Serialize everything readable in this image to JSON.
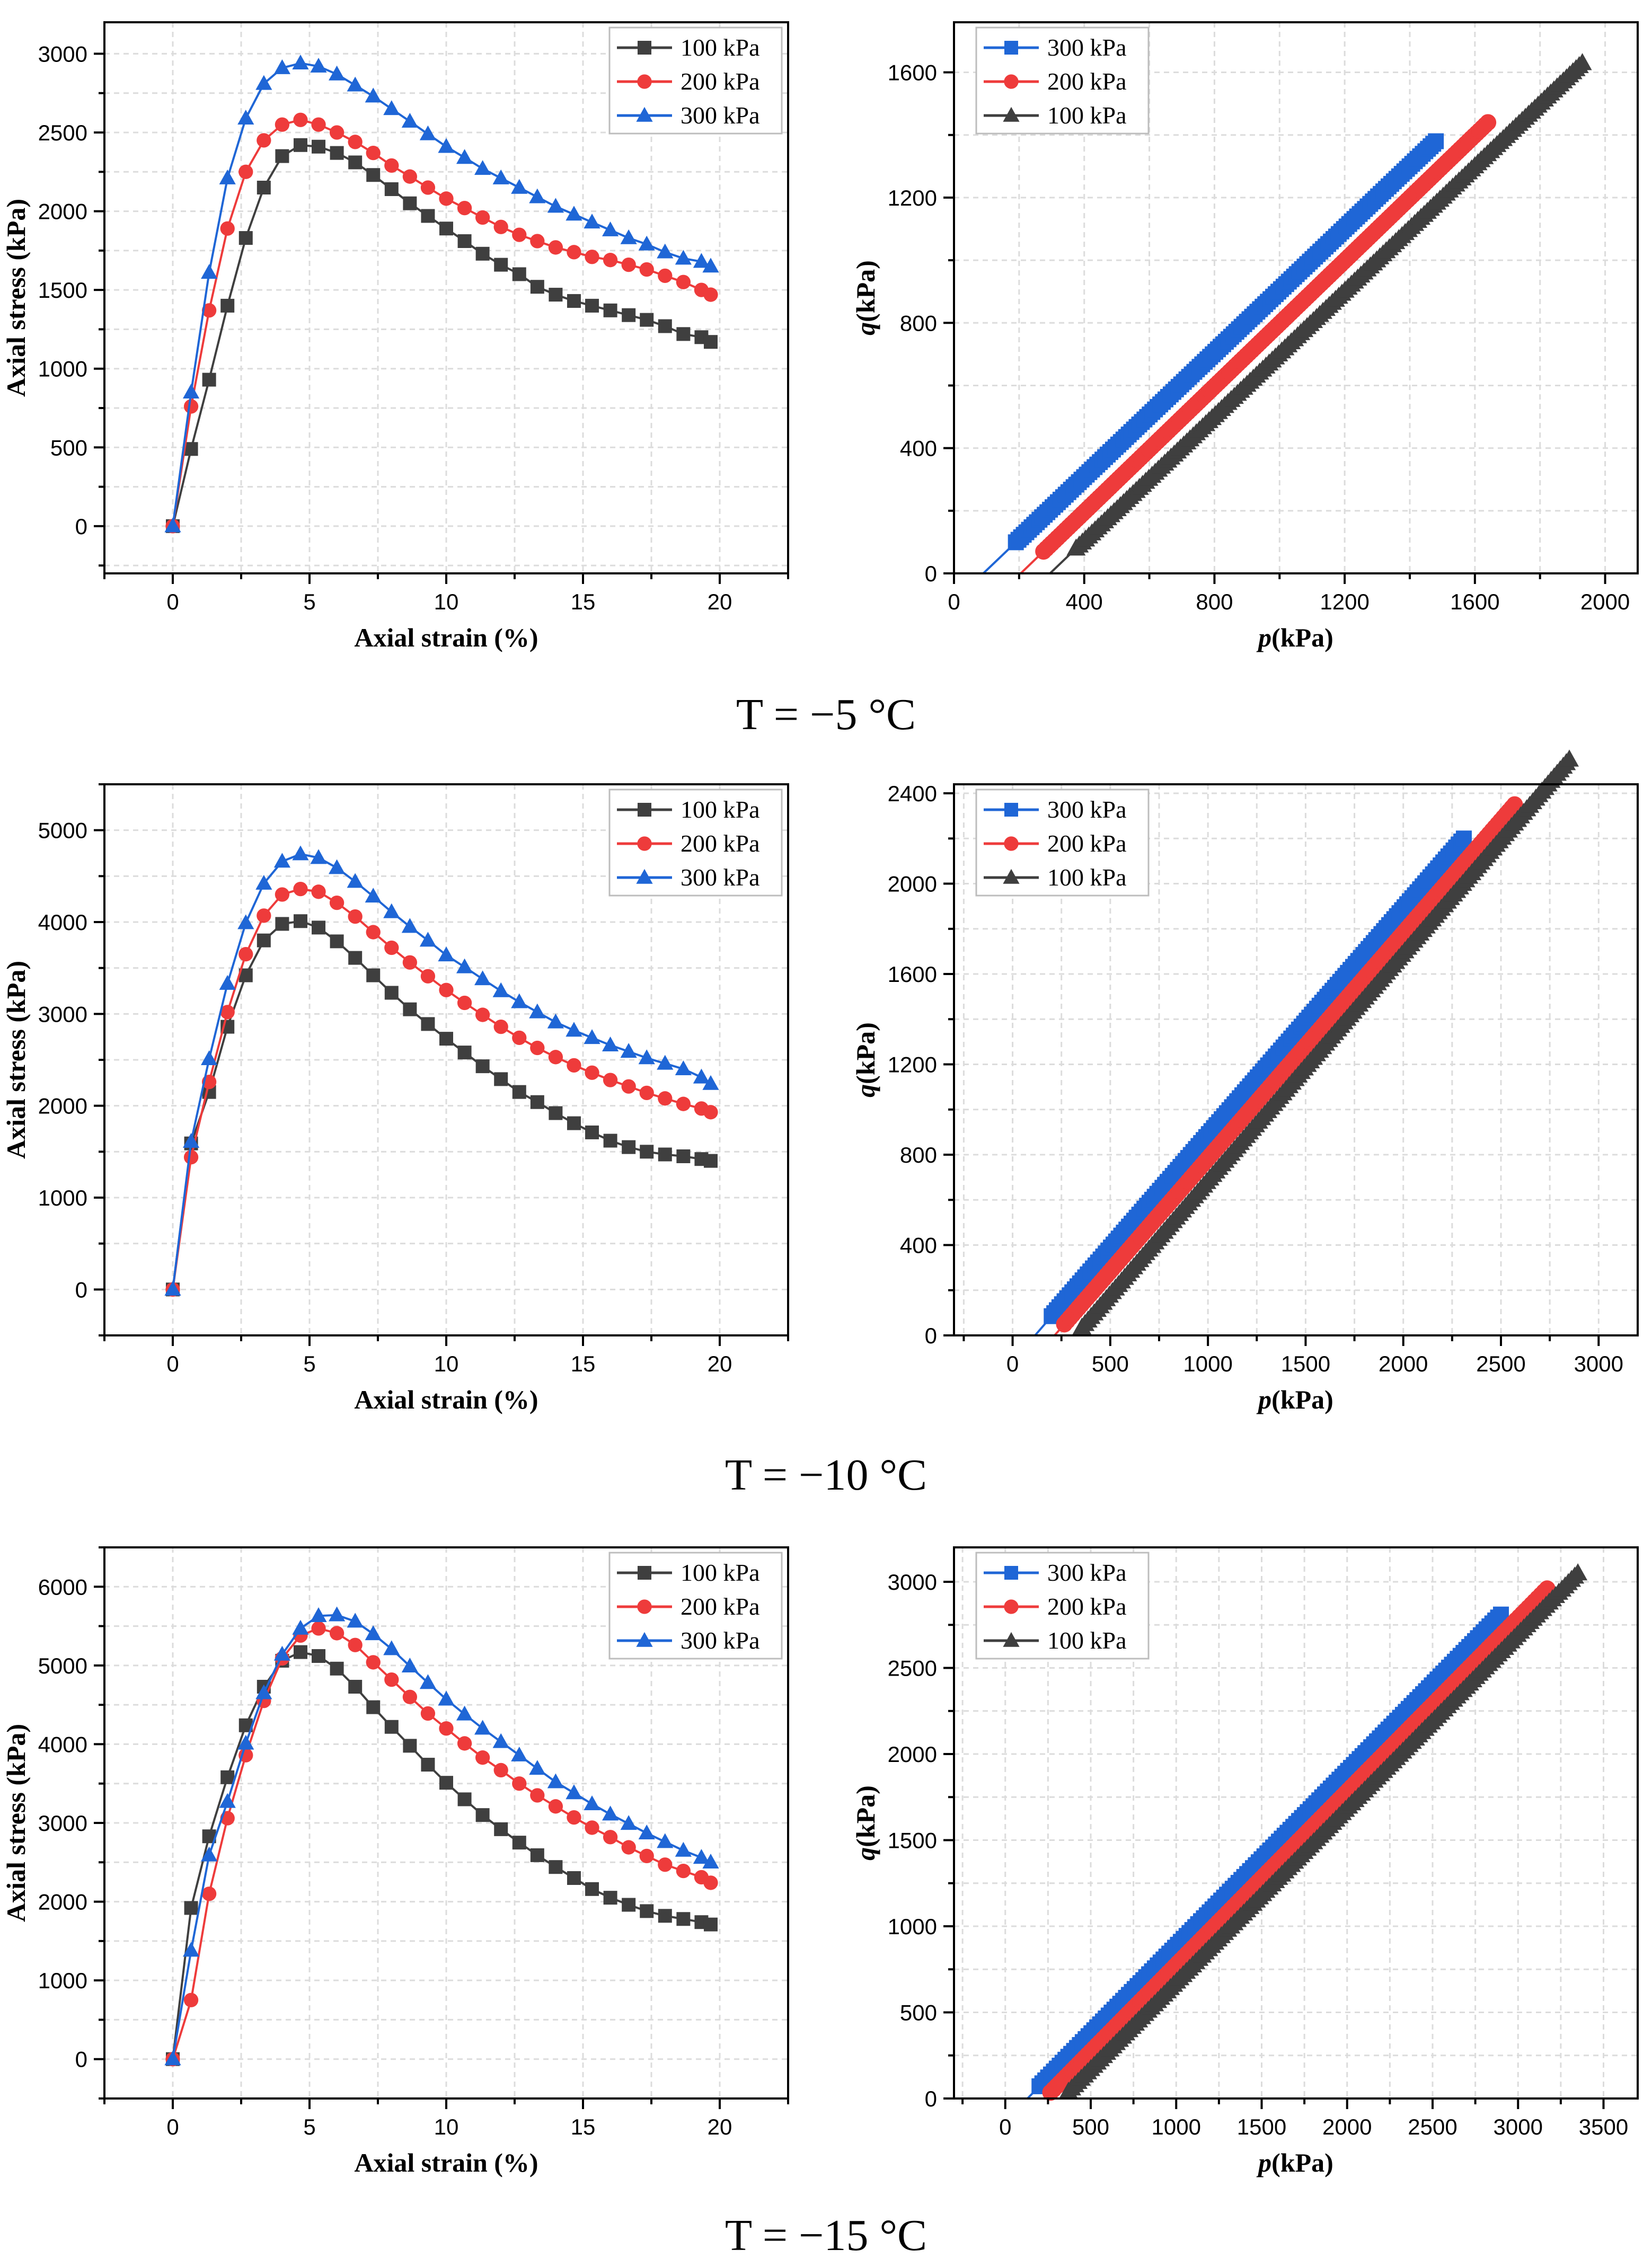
{
  "captions": [
    "T = −5 °C",
    "T = −10 °C",
    "T = −15 °C"
  ],
  "colors": {
    "100 kPa": "#3f3f3f",
    "200 kPa": "#ee3b3b",
    "300 kPa": "#1f66d6"
  },
  "chart_data": [
    {
      "type": "line",
      "title": "",
      "xlabel": "Axial strain (%)",
      "ylabel": "Axial stress (kPa)",
      "xlim": [
        -2.5,
        22.5
      ],
      "ylim": [
        -300,
        3200
      ],
      "xticks": [
        0,
        5,
        10,
        15,
        20
      ],
      "yticks": [
        0,
        500,
        1000,
        1500,
        2000,
        2500,
        3000
      ],
      "legend": "top-right",
      "series": [
        {
          "name": "100 kPa",
          "marker": "square",
          "x": [
            0,
            0.67,
            1.33,
            2.0,
            2.67,
            3.33,
            4.0,
            4.67,
            5.33,
            6.0,
            6.67,
            7.33,
            8.0,
            8.67,
            9.33,
            10.0,
            10.67,
            11.33,
            12.0,
            12.67,
            13.33,
            14.0,
            14.67,
            15.33,
            16.0,
            16.67,
            17.33,
            18.0,
            18.67,
            19.33,
            19.67
          ],
          "y": [
            0,
            490,
            930,
            1400,
            1830,
            2150,
            2350,
            2420,
            2410,
            2370,
            2310,
            2230,
            2140,
            2050,
            1970,
            1890,
            1810,
            1730,
            1660,
            1600,
            1520,
            1470,
            1430,
            1400,
            1370,
            1340,
            1310,
            1270,
            1220,
            1200,
            1170
          ]
        },
        {
          "name": "200 kPa",
          "marker": "circle",
          "x": [
            0,
            0.67,
            1.33,
            2.0,
            2.67,
            3.33,
            4.0,
            4.67,
            5.33,
            6.0,
            6.67,
            7.33,
            8.0,
            8.67,
            9.33,
            10.0,
            10.67,
            11.33,
            12.0,
            12.67,
            13.33,
            14.0,
            14.67,
            15.33,
            16.0,
            16.67,
            17.33,
            18.0,
            18.67,
            19.33,
            19.67
          ],
          "y": [
            0,
            760,
            1370,
            1890,
            2250,
            2450,
            2550,
            2580,
            2550,
            2500,
            2440,
            2370,
            2290,
            2220,
            2150,
            2080,
            2020,
            1960,
            1900,
            1850,
            1810,
            1770,
            1740,
            1710,
            1690,
            1660,
            1630,
            1590,
            1550,
            1500,
            1470
          ]
        },
        {
          "name": "300 kPa",
          "marker": "triangle",
          "x": [
            0,
            0.67,
            1.33,
            2.0,
            2.67,
            3.33,
            4.0,
            4.67,
            5.33,
            6.0,
            6.67,
            7.33,
            8.0,
            8.67,
            9.33,
            10.0,
            10.67,
            11.33,
            12.0,
            12.67,
            13.33,
            14.0,
            14.67,
            15.33,
            16.0,
            16.67,
            17.33,
            18.0,
            18.67,
            19.33,
            19.67
          ],
          "y": [
            0,
            850,
            1610,
            2210,
            2590,
            2810,
            2910,
            2940,
            2920,
            2870,
            2800,
            2730,
            2650,
            2570,
            2490,
            2410,
            2340,
            2270,
            2210,
            2150,
            2090,
            2030,
            1980,
            1930,
            1880,
            1830,
            1790,
            1740,
            1700,
            1680,
            1650
          ]
        }
      ]
    },
    {
      "type": "line",
      "title": "",
      "xlabel": "p(kPa)",
      "ylabel": "q(kPa)",
      "xlim": [
        0,
        2100
      ],
      "ylim": [
        0,
        1760
      ],
      "xticks": [
        0,
        400,
        800,
        1200,
        1600,
        2000
      ],
      "yticks": [
        0,
        400,
        800,
        1200,
        1600
      ],
      "legend": "top-left",
      "series": [
        {
          "name": "300 kPa",
          "marker": "square",
          "dense": true,
          "x": [
            90,
            1480
          ],
          "y": [
            0,
            1380
          ],
          "marker_start_x": 190
        },
        {
          "name": "200 kPa",
          "marker": "circle",
          "dense": true,
          "x": [
            205,
            1640
          ],
          "y": [
            0,
            1440
          ],
          "marker_start_x": 275
        },
        {
          "name": "100 kPa",
          "marker": "triangle",
          "dense": true,
          "x": [
            295,
            1930
          ],
          "y": [
            0,
            1630
          ],
          "marker_start_x": 375
        }
      ]
    },
    {
      "type": "line",
      "title": "",
      "xlabel": "Axial strain (%)",
      "ylabel": "Axial stress (kPa)",
      "xlim": [
        -2.5,
        22.5
      ],
      "ylim": [
        -500,
        5500
      ],
      "xticks": [
        0,
        5,
        10,
        15,
        20
      ],
      "yticks": [
        0,
        1000,
        2000,
        3000,
        4000,
        5000
      ],
      "legend": "top-right",
      "series": [
        {
          "name": "100 kPa",
          "marker": "square",
          "x": [
            0,
            0.67,
            1.33,
            2.0,
            2.67,
            3.33,
            4.0,
            4.67,
            5.33,
            6.0,
            6.67,
            7.33,
            8.0,
            8.67,
            9.33,
            10.0,
            10.67,
            11.33,
            12.0,
            12.67,
            13.33,
            14.0,
            14.67,
            15.33,
            16.0,
            16.67,
            17.33,
            18.0,
            18.67,
            19.33,
            19.67
          ],
          "y": [
            0,
            1590,
            2150,
            2860,
            3420,
            3800,
            3980,
            4010,
            3940,
            3790,
            3610,
            3420,
            3230,
            3050,
            2890,
            2730,
            2580,
            2430,
            2290,
            2150,
            2040,
            1920,
            1810,
            1710,
            1620,
            1550,
            1500,
            1470,
            1450,
            1420,
            1400
          ]
        },
        {
          "name": "200 kPa",
          "marker": "circle",
          "x": [
            0,
            0.67,
            1.33,
            2.0,
            2.67,
            3.33,
            4.0,
            4.67,
            5.33,
            6.0,
            6.67,
            7.33,
            8.0,
            8.67,
            9.33,
            10.0,
            10.67,
            11.33,
            12.0,
            12.67,
            13.33,
            14.0,
            14.67,
            15.33,
            16.0,
            16.67,
            17.33,
            18.0,
            18.67,
            19.33,
            19.67
          ],
          "y": [
            0,
            1440,
            2260,
            3020,
            3650,
            4070,
            4300,
            4360,
            4330,
            4210,
            4060,
            3890,
            3720,
            3560,
            3410,
            3260,
            3120,
            2990,
            2860,
            2740,
            2630,
            2530,
            2440,
            2360,
            2280,
            2210,
            2140,
            2080,
            2020,
            1970,
            1930
          ]
        },
        {
          "name": "300 kPa",
          "marker": "triangle",
          "x": [
            0,
            0.67,
            1.33,
            2.0,
            2.67,
            3.33,
            4.0,
            4.67,
            5.33,
            6.0,
            6.67,
            7.33,
            8.0,
            8.67,
            9.33,
            10.0,
            10.67,
            11.33,
            12.0,
            12.67,
            13.33,
            14.0,
            14.67,
            15.33,
            16.0,
            16.67,
            17.33,
            18.0,
            18.67,
            19.33,
            19.67
          ],
          "y": [
            0,
            1610,
            2510,
            3330,
            3990,
            4420,
            4660,
            4740,
            4700,
            4590,
            4440,
            4280,
            4110,
            3950,
            3800,
            3640,
            3510,
            3380,
            3250,
            3130,
            3020,
            2910,
            2820,
            2740,
            2660,
            2590,
            2520,
            2460,
            2400,
            2310,
            2240
          ]
        }
      ]
    },
    {
      "type": "line",
      "title": "",
      "xlabel": "p(kPa)",
      "ylabel": "q(kPa)",
      "xlim": [
        -300,
        3200
      ],
      "ylim": [
        0,
        2440
      ],
      "xticks": [
        0,
        500,
        1000,
        1500,
        2000,
        2500,
        3000
      ],
      "yticks": [
        0,
        400,
        800,
        1200,
        1600,
        2000,
        2400
      ],
      "legend": "top-left",
      "series": [
        {
          "name": "300 kPa",
          "marker": "square",
          "dense": true,
          "x": [
            115,
            2310
          ],
          "y": [
            0,
            2200
          ],
          "marker_start_x": 200
        },
        {
          "name": "200 kPa",
          "marker": "circle",
          "dense": true,
          "x": [
            215,
            2570
          ],
          "y": [
            0,
            2350
          ],
          "marker_start_x": 265
        },
        {
          "name": "100 kPa",
          "marker": "triangle",
          "dense": true,
          "x": [
            320,
            2850
          ],
          "y": [
            0,
            2550
          ],
          "marker_start_x": 355
        }
      ]
    },
    {
      "type": "line",
      "title": "",
      "xlabel": "Axial strain (%)",
      "ylabel": "Axial stress (kPa)",
      "xlim": [
        -2.5,
        22.5
      ],
      "ylim": [
        -500,
        6500
      ],
      "xticks": [
        0,
        5,
        10,
        15,
        20
      ],
      "yticks": [
        0,
        1000,
        2000,
        3000,
        4000,
        5000,
        6000
      ],
      "legend": "top-right",
      "series": [
        {
          "name": "100 kPa",
          "marker": "square",
          "x": [
            0,
            0.67,
            1.33,
            2.0,
            2.67,
            3.33,
            4.0,
            4.67,
            5.33,
            6.0,
            6.67,
            7.33,
            8.0,
            8.67,
            9.33,
            10.0,
            10.67,
            11.33,
            12.0,
            12.67,
            13.33,
            14.0,
            14.67,
            15.33,
            16.0,
            16.67,
            17.33,
            18.0,
            18.67,
            19.33,
            19.67
          ],
          "y": [
            0,
            1920,
            2830,
            3580,
            4240,
            4730,
            5060,
            5170,
            5120,
            4960,
            4730,
            4470,
            4220,
            3980,
            3740,
            3510,
            3300,
            3100,
            2920,
            2750,
            2590,
            2440,
            2300,
            2160,
            2050,
            1960,
            1880,
            1820,
            1780,
            1740,
            1710
          ]
        },
        {
          "name": "200 kPa",
          "marker": "circle",
          "x": [
            0,
            0.67,
            1.33,
            2.0,
            2.67,
            3.33,
            4.0,
            4.67,
            5.33,
            6.0,
            6.67,
            7.33,
            8.0,
            8.67,
            9.33,
            10.0,
            10.67,
            11.33,
            12.0,
            12.67,
            13.33,
            14.0,
            14.67,
            15.33,
            16.0,
            16.67,
            17.33,
            18.0,
            18.67,
            19.33,
            19.67
          ],
          "y": [
            0,
            750,
            2100,
            3060,
            3860,
            4550,
            5090,
            5380,
            5470,
            5410,
            5260,
            5040,
            4820,
            4600,
            4390,
            4200,
            4010,
            3830,
            3670,
            3500,
            3350,
            3210,
            3070,
            2940,
            2820,
            2690,
            2580,
            2470,
            2390,
            2310,
            2240
          ]
        },
        {
          "name": "300 kPa",
          "marker": "triangle",
          "x": [
            0,
            0.67,
            1.33,
            2.0,
            2.67,
            3.33,
            4.0,
            4.67,
            5.33,
            6.0,
            6.67,
            7.33,
            8.0,
            8.67,
            9.33,
            10.0,
            10.67,
            11.33,
            12.0,
            12.67,
            13.33,
            14.0,
            14.67,
            15.33,
            16.0,
            16.67,
            17.33,
            18.0,
            18.67,
            19.33,
            19.67
          ],
          "y": [
            0,
            1380,
            2590,
            3270,
            4010,
            4650,
            5140,
            5470,
            5630,
            5640,
            5560,
            5400,
            5210,
            4990,
            4780,
            4570,
            4380,
            4200,
            4030,
            3860,
            3690,
            3520,
            3380,
            3240,
            3110,
            2990,
            2870,
            2760,
            2650,
            2560,
            2500
          ]
        }
      ]
    },
    {
      "type": "line",
      "title": "",
      "xlabel": "p(kPa)",
      "ylabel": "q(kPa)",
      "xlim": [
        -300,
        3700
      ],
      "ylim": [
        0,
        3200
      ],
      "xticks": [
        0,
        500,
        1000,
        1500,
        2000,
        2500,
        3000,
        3500
      ],
      "yticks": [
        0,
        500,
        1000,
        1500,
        2000,
        2500,
        3000
      ],
      "legend": "top-left",
      "series": [
        {
          "name": "300 kPa",
          "marker": "square",
          "dense": true,
          "x": [
            130,
            2900
          ],
          "y": [
            0,
            2810
          ],
          "marker_start_x": 200
        },
        {
          "name": "200 kPa",
          "marker": "circle",
          "dense": true,
          "x": [
            230,
            3170
          ],
          "y": [
            0,
            2960
          ],
          "marker_start_x": 265
        },
        {
          "name": "100 kPa",
          "marker": "triangle",
          "dense": true,
          "x": [
            330,
            3350
          ],
          "y": [
            0,
            3050
          ],
          "marker_start_x": 370
        }
      ]
    }
  ]
}
